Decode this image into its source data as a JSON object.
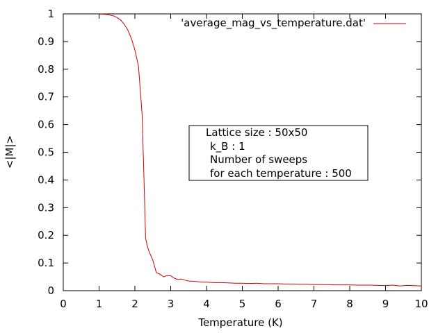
{
  "chart_data": {
    "type": "line",
    "xlabel": "Temperature (K)",
    "ylabel": "<|M|>",
    "xlim": [
      0,
      10
    ],
    "ylim": [
      0,
      1
    ],
    "xticks": [
      "0",
      "1",
      "2",
      "3",
      "4",
      "5",
      "6",
      "7",
      "8",
      "9",
      "10"
    ],
    "yticks": [
      "0",
      "0.1",
      "0.2",
      "0.3",
      "0.4",
      "0.5",
      "0.6",
      "0.7",
      "0.8",
      "0.9",
      "1"
    ],
    "grid": false,
    "legend_position": "top-right",
    "series": [
      {
        "name": "'average_mag_vs_temperature.dat'",
        "color": "#cc0000",
        "x": [
          1.0,
          1.1,
          1.2,
          1.3,
          1.4,
          1.5,
          1.6,
          1.7,
          1.8,
          1.9,
          2.0,
          2.1,
          2.2,
          2.25,
          2.3,
          2.35,
          2.4,
          2.5,
          2.6,
          2.7,
          2.8,
          2.9,
          3.0,
          3.1,
          3.2,
          3.3,
          3.4,
          3.5,
          3.6,
          3.7,
          3.8,
          3.9,
          4.0,
          4.2,
          4.4,
          4.6,
          4.8,
          5.0,
          5.2,
          5.4,
          5.6,
          5.8,
          6.0,
          6.2,
          6.4,
          6.6,
          6.8,
          7.0,
          7.2,
          7.4,
          7.6,
          7.8,
          8.0,
          8.2,
          8.4,
          8.6,
          8.8,
          9.0,
          9.2,
          9.4,
          9.6,
          9.8,
          10.0
        ],
        "y": [
          0.999,
          0.999,
          0.998,
          0.996,
          0.993,
          0.987,
          0.978,
          0.963,
          0.942,
          0.912,
          0.87,
          0.81,
          0.64,
          0.42,
          0.19,
          0.16,
          0.14,
          0.11,
          0.065,
          0.06,
          0.05,
          0.055,
          0.054,
          0.045,
          0.04,
          0.042,
          0.038,
          0.035,
          0.034,
          0.033,
          0.032,
          0.031,
          0.031,
          0.029,
          0.029,
          0.028,
          0.027,
          0.027,
          0.026,
          0.027,
          0.025,
          0.025,
          0.025,
          0.024,
          0.024,
          0.023,
          0.023,
          0.022,
          0.022,
          0.022,
          0.021,
          0.021,
          0.021,
          0.02,
          0.02,
          0.02,
          0.019,
          0.018,
          0.02,
          0.017,
          0.019,
          0.018,
          0.017
        ]
      }
    ],
    "annotation": {
      "lines": [
        "Lattice size : 50x50",
        "k_B : 1",
        "Number of sweeps",
        "for each temperature : 500"
      ]
    }
  }
}
